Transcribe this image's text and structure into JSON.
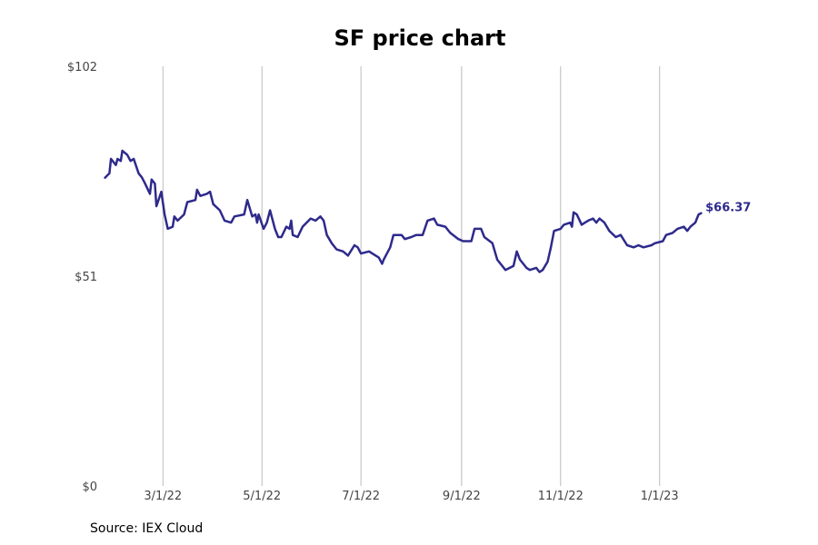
{
  "title": "SF price chart",
  "source": "Source: IEX Cloud",
  "colors": {
    "line": "#2e2a8c",
    "grid": "#bbbbbb",
    "text": "#444444"
  },
  "chart_data": {
    "type": "line",
    "title": "SF price chart",
    "xlabel": "",
    "ylabel": "",
    "ylim": [
      0,
      102
    ],
    "y_ticks": [
      {
        "value": 0,
        "label": "$0"
      },
      {
        "value": 51,
        "label": "$51"
      },
      {
        "value": 102,
        "label": "$102"
      }
    ],
    "x_ticks": [
      {
        "value": "2022-03-01",
        "label": "3/1/22"
      },
      {
        "value": "2022-05-01",
        "label": "5/1/22"
      },
      {
        "value": "2022-07-01",
        "label": "7/1/22"
      },
      {
        "value": "2022-09-01",
        "label": "9/1/22"
      },
      {
        "value": "2022-11-01",
        "label": "11/1/22"
      },
      {
        "value": "2023-01-01",
        "label": "1/1/23"
      }
    ],
    "xlim": [
      "2022-01-24",
      "2023-03-06"
    ],
    "grid": "vertical",
    "end_label": "$66.37",
    "series": [
      {
        "values": [
          [
            "2022-01-24",
            74.8
          ],
          [
            "2022-01-27",
            76
          ],
          [
            "2022-01-28",
            79.5
          ],
          [
            "2022-01-31",
            78
          ],
          [
            "2022-02-01",
            79.5
          ],
          [
            "2022-02-03",
            79
          ],
          [
            "2022-02-04",
            81.5
          ],
          [
            "2022-02-07",
            80.5
          ],
          [
            "2022-02-09",
            79
          ],
          [
            "2022-02-11",
            79.5
          ],
          [
            "2022-02-14",
            76
          ],
          [
            "2022-02-16",
            75
          ],
          [
            "2022-02-18",
            73.5
          ],
          [
            "2022-02-21",
            71
          ],
          [
            "2022-02-22",
            74.5
          ],
          [
            "2022-02-24",
            73.5
          ],
          [
            "2022-02-25",
            68
          ],
          [
            "2022-02-28",
            71.5
          ],
          [
            "2022-03-02",
            66
          ],
          [
            "2022-03-04",
            62.5
          ],
          [
            "2022-03-07",
            63
          ],
          [
            "2022-03-08",
            65.5
          ],
          [
            "2022-03-10",
            64.5
          ],
          [
            "2022-03-14",
            66
          ],
          [
            "2022-03-16",
            69
          ],
          [
            "2022-03-21",
            69.5
          ],
          [
            "2022-03-22",
            72
          ],
          [
            "2022-03-24",
            70.5
          ],
          [
            "2022-03-28",
            71
          ],
          [
            "2022-03-30",
            71.5
          ],
          [
            "2022-04-01",
            68.5
          ],
          [
            "2022-04-05",
            67
          ],
          [
            "2022-04-08",
            64.5
          ],
          [
            "2022-04-12",
            64
          ],
          [
            "2022-04-14",
            65.5
          ],
          [
            "2022-04-20",
            66
          ],
          [
            "2022-04-22",
            69.5
          ],
          [
            "2022-04-25",
            65.5
          ],
          [
            "2022-04-27",
            66
          ],
          [
            "2022-04-28",
            64
          ],
          [
            "2022-04-29",
            66
          ],
          [
            "2022-05-02",
            62.5
          ],
          [
            "2022-05-04",
            64
          ],
          [
            "2022-05-06",
            67
          ],
          [
            "2022-05-09",
            62.5
          ],
          [
            "2022-05-11",
            60.5
          ],
          [
            "2022-05-13",
            60.5
          ],
          [
            "2022-05-16",
            63
          ],
          [
            "2022-05-18",
            62.5
          ],
          [
            "2022-05-19",
            64.5
          ],
          [
            "2022-05-20",
            61
          ],
          [
            "2022-05-23",
            60.5
          ],
          [
            "2022-05-26",
            63
          ],
          [
            "2022-05-31",
            65
          ],
          [
            "2022-06-03",
            64.5
          ],
          [
            "2022-06-06",
            65.5
          ],
          [
            "2022-06-08",
            64.5
          ],
          [
            "2022-06-10",
            61
          ],
          [
            "2022-06-13",
            59
          ],
          [
            "2022-06-16",
            57.5
          ],
          [
            "2022-06-20",
            57
          ],
          [
            "2022-06-23",
            56
          ],
          [
            "2022-06-27",
            58.5
          ],
          [
            "2022-06-29",
            58
          ],
          [
            "2022-07-01",
            56.5
          ],
          [
            "2022-07-06",
            57
          ],
          [
            "2022-07-08",
            56.5
          ],
          [
            "2022-07-12",
            55.5
          ],
          [
            "2022-07-14",
            54
          ],
          [
            "2022-07-15",
            55
          ],
          [
            "2022-07-19",
            58
          ],
          [
            "2022-07-21",
            61
          ],
          [
            "2022-07-26",
            61
          ],
          [
            "2022-07-28",
            60
          ],
          [
            "2022-08-01",
            60.5
          ],
          [
            "2022-08-04",
            61
          ],
          [
            "2022-08-08",
            61
          ],
          [
            "2022-08-11",
            64.5
          ],
          [
            "2022-08-15",
            65
          ],
          [
            "2022-08-17",
            63.5
          ],
          [
            "2022-08-22",
            63
          ],
          [
            "2022-08-25",
            61.5
          ],
          [
            "2022-08-30",
            60
          ],
          [
            "2022-09-02",
            59.5
          ],
          [
            "2022-09-07",
            59.5
          ],
          [
            "2022-09-09",
            62.5
          ],
          [
            "2022-09-13",
            62.5
          ],
          [
            "2022-09-15",
            60.5
          ],
          [
            "2022-09-20",
            59
          ],
          [
            "2022-09-23",
            55
          ],
          [
            "2022-09-28",
            52.5
          ],
          [
            "2022-10-03",
            53.5
          ],
          [
            "2022-10-05",
            57
          ],
          [
            "2022-10-07",
            55
          ],
          [
            "2022-10-11",
            53
          ],
          [
            "2022-10-13",
            52.5
          ],
          [
            "2022-10-17",
            53
          ],
          [
            "2022-10-19",
            52
          ],
          [
            "2022-10-21",
            52.5
          ],
          [
            "2022-10-24",
            54.5
          ],
          [
            "2022-10-26",
            58
          ],
          [
            "2022-10-28",
            62
          ],
          [
            "2022-11-01",
            62.5
          ],
          [
            "2022-11-03",
            63.5
          ],
          [
            "2022-11-07",
            64
          ],
          [
            "2022-11-08",
            63
          ],
          [
            "2022-11-09",
            66.5
          ],
          [
            "2022-11-11",
            66
          ],
          [
            "2022-11-14",
            63.5
          ],
          [
            "2022-11-16",
            64
          ],
          [
            "2022-11-18",
            64.5
          ],
          [
            "2022-11-21",
            65
          ],
          [
            "2022-11-23",
            64
          ],
          [
            "2022-11-25",
            65
          ],
          [
            "2022-11-28",
            64
          ],
          [
            "2022-12-01",
            62
          ],
          [
            "2022-12-05",
            60.5
          ],
          [
            "2022-12-08",
            61
          ],
          [
            "2022-12-12",
            58.5
          ],
          [
            "2022-12-16",
            58
          ],
          [
            "2022-12-19",
            58.5
          ],
          [
            "2022-12-22",
            58
          ],
          [
            "2022-12-27",
            58.5
          ],
          [
            "2022-12-29",
            59
          ],
          [
            "2023-01-03",
            59.5
          ],
          [
            "2023-01-05",
            61
          ],
          [
            "2023-01-09",
            61.5
          ],
          [
            "2023-01-12",
            62.5
          ],
          [
            "2023-01-16",
            63
          ],
          [
            "2023-01-18",
            62
          ],
          [
            "2023-01-20",
            63
          ],
          [
            "2023-01-23",
            64
          ],
          [
            "2023-01-25",
            66
          ],
          [
            "2023-01-27",
            66.37
          ]
        ]
      }
    ]
  }
}
